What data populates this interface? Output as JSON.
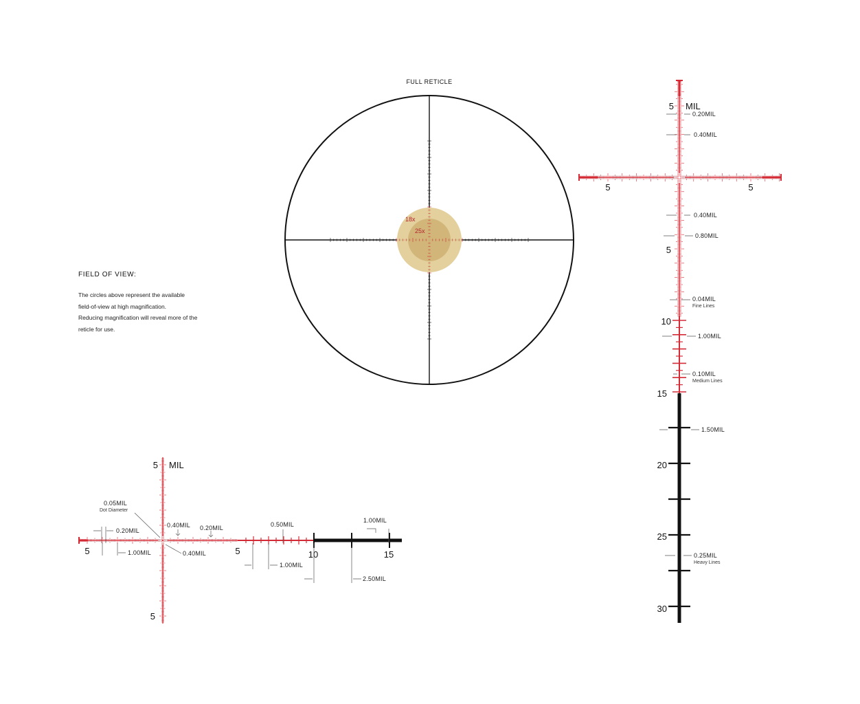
{
  "full_reticle": {
    "title": "FULL RETICLE",
    "mag_18": "18x",
    "mag_25": "25x"
  },
  "field_of_view": {
    "heading": "FIELD OF VIEW:",
    "lines": [
      "The circles above represent the available",
      "field-of-view at high magnification.",
      "Reducing magnification will reveal more of the",
      "reticle for use."
    ]
  },
  "right_detail": {
    "top_num": "5",
    "unit": "MIL",
    "left_num": "5",
    "right_num": "5",
    "mid_num": "5",
    "n10": "10",
    "n15": "15",
    "n20": "20",
    "n25": "25",
    "n30": "30",
    "c020": "0.20MIL",
    "c040a": "0.40MIL",
    "c040b": "0.40MIL",
    "c080": "0.80MIL",
    "c004": "0.04MIL",
    "c004_sub": "Fine Lines",
    "c100": "1.00MIL",
    "c010": "0.10MIL",
    "c010_sub": "Medium Lines",
    "c150": "1.50MIL",
    "c025": "0.25MIL",
    "c025_sub": "Heavy Lines"
  },
  "bottom_detail": {
    "top_num": "5",
    "unit": "MIL",
    "bottom_num": "5",
    "left_num": "5",
    "mid_num": "5",
    "n10": "10",
    "n15": "15",
    "c005": "0.05MIL",
    "c005_sub": "Dot Diameter",
    "c020a": "0.20MIL",
    "c040a": "0.40MIL",
    "c020b": "0.20MIL",
    "c050": "0.50MIL",
    "c100a": "1.00MIL",
    "c100b": "1.00MIL",
    "c040b": "0.40MIL",
    "c100c": "1.00MIL",
    "c250": "2.50MIL"
  },
  "colors": {
    "reticle_red": "#d42a35",
    "heavy_black": "#111111",
    "fov_outer": "#e2cd97",
    "fov_inner": "#c7a462"
  }
}
